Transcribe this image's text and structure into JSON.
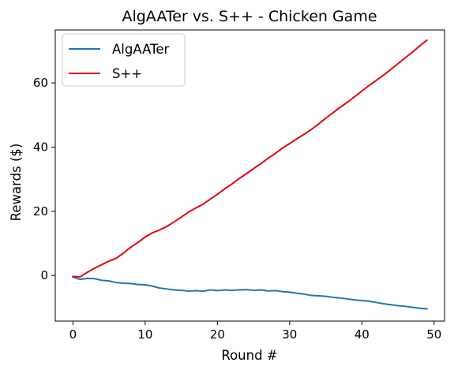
{
  "chart_data": {
    "type": "line",
    "title": "AlgAATer vs. S++ - Chicken Game",
    "xlabel": "Round #",
    "ylabel": "Rewards ($)",
    "xlim": [
      -2.45,
      51.45
    ],
    "ylim": [
      -14.2,
      76.5
    ],
    "xticks": [
      0,
      10,
      20,
      30,
      40,
      50
    ],
    "yticks": [
      0,
      20,
      40,
      60
    ],
    "grid": false,
    "legend_position": "top-left",
    "x": [
      0,
      1,
      2,
      3,
      4,
      5,
      6,
      7,
      8,
      9,
      10,
      11,
      12,
      13,
      14,
      15,
      16,
      17,
      18,
      19,
      20,
      21,
      22,
      23,
      24,
      25,
      26,
      27,
      28,
      29,
      30,
      31,
      32,
      33,
      34,
      35,
      36,
      37,
      38,
      39,
      40,
      41,
      42,
      43,
      44,
      45,
      46,
      47,
      48,
      49
    ],
    "series": [
      {
        "name": "AlgAATer",
        "color": "#1f77b4",
        "values": [
          -0.5,
          -1.2,
          -0.9,
          -1.0,
          -1.5,
          -1.7,
          -2.2,
          -2.4,
          -2.5,
          -2.8,
          -2.9,
          -3.3,
          -3.9,
          -4.2,
          -4.5,
          -4.6,
          -4.9,
          -4.7,
          -4.9,
          -4.5,
          -4.7,
          -4.5,
          -4.6,
          -4.5,
          -4.4,
          -4.6,
          -4.5,
          -4.8,
          -4.7,
          -5.0,
          -5.2,
          -5.5,
          -5.8,
          -6.2,
          -6.3,
          -6.5,
          -6.8,
          -7.0,
          -7.3,
          -7.6,
          -7.8,
          -8.0,
          -8.4,
          -8.8,
          -9.1,
          -9.4,
          -9.6,
          -9.9,
          -10.2,
          -10.4
        ]
      },
      {
        "name": "S++",
        "color": "#e8000b",
        "values": [
          -0.3,
          -0.4,
          1.0,
          2.3,
          3.4,
          4.5,
          5.4,
          7.0,
          8.8,
          10.3,
          12.0,
          13.3,
          14.2,
          15.3,
          16.7,
          18.2,
          19.8,
          21.0,
          22.2,
          23.8,
          25.3,
          27.0,
          28.5,
          30.2,
          31.7,
          33.3,
          34.8,
          36.5,
          38.0,
          39.7,
          41.1,
          42.6,
          44.0,
          45.5,
          47.2,
          49.0,
          50.7,
          52.4,
          54.0,
          55.7,
          57.5,
          59.2,
          60.8,
          62.4,
          64.2,
          66.0,
          67.8,
          69.6,
          71.5,
          73.3
        ]
      }
    ]
  }
}
